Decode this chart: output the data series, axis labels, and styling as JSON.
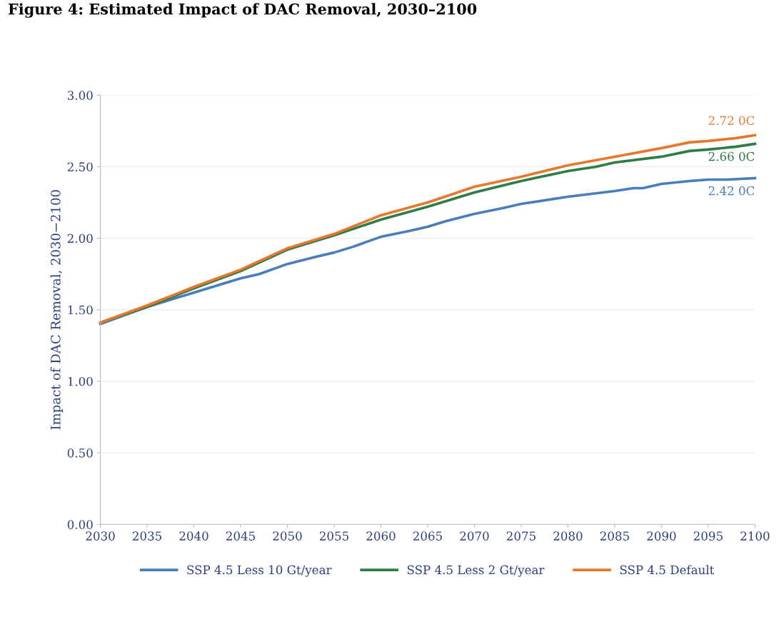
{
  "chart_data": {
    "type": "line",
    "title": "Figure 4: Estimated Impact of DAC Removal, 2030–2100",
    "ylabel": "Impact of DAC Removal, 2030−2100",
    "xlim": [
      2030,
      2100
    ],
    "xticks": [
      2030,
      2035,
      2040,
      2045,
      2050,
      2055,
      2060,
      2065,
      2070,
      2075,
      2080,
      2085,
      2090,
      2095,
      2100
    ],
    "ylim": [
      0,
      3
    ],
    "yticks": [
      {
        "value": 0,
        "label": "0.00"
      },
      {
        "value": 0.5,
        "label": "0.50"
      },
      {
        "value": 1,
        "label": "1.00"
      },
      {
        "value": 1.5,
        "label": "1.50"
      },
      {
        "value": 2,
        "label": "2.00"
      },
      {
        "value": 2.5,
        "label": "2.50"
      },
      {
        "value": 3,
        "label": "3.00"
      }
    ],
    "grid": "y",
    "legend": "bottom",
    "marker": "none",
    "line_style": "solid",
    "series": [
      {
        "name": "SSP 4.5 Less 10 Gt/year",
        "color": "#4a7ebb",
        "x": [
          2030,
          2035,
          2037,
          2040,
          2045,
          2047,
          2050,
          2053,
          2055,
          2057,
          2060,
          2063,
          2065,
          2067,
          2070,
          2073,
          2075,
          2080,
          2085,
          2087,
          2088,
          2090,
          2093,
          2095,
          2097,
          2100
        ],
        "values": [
          1.4,
          1.52,
          1.56,
          1.62,
          1.72,
          1.75,
          1.82,
          1.87,
          1.9,
          1.94,
          2.01,
          2.05,
          2.08,
          2.12,
          2.17,
          2.21,
          2.24,
          2.29,
          2.33,
          2.35,
          2.35,
          2.38,
          2.4,
          2.41,
          2.41,
          2.42
        ]
      },
      {
        "name": "SSP 4.5 Less 2 Gt/year",
        "color": "#2e7d45",
        "x": [
          2030,
          2035,
          2040,
          2045,
          2050,
          2055,
          2060,
          2065,
          2070,
          2075,
          2080,
          2083,
          2085,
          2090,
          2093,
          2095,
          2098,
          2100
        ],
        "values": [
          1.41,
          1.52,
          1.65,
          1.77,
          1.92,
          2.02,
          2.13,
          2.22,
          2.32,
          2.4,
          2.47,
          2.5,
          2.53,
          2.57,
          2.61,
          2.62,
          2.64,
          2.66
        ]
      },
      {
        "name": "SSP 4.5 Default",
        "color": "#e8772e",
        "x": [
          2030,
          2035,
          2040,
          2045,
          2050,
          2055,
          2060,
          2065,
          2070,
          2075,
          2080,
          2085,
          2090,
          2093,
          2095,
          2098,
          2100
        ],
        "values": [
          1.41,
          1.53,
          1.66,
          1.78,
          1.93,
          2.03,
          2.16,
          2.25,
          2.36,
          2.43,
          2.51,
          2.57,
          2.63,
          2.67,
          2.68,
          2.7,
          2.72
        ]
      }
    ],
    "annotations": [
      "2.42 0C",
      "2.66 0C",
      "2.72 0C"
    ]
  }
}
